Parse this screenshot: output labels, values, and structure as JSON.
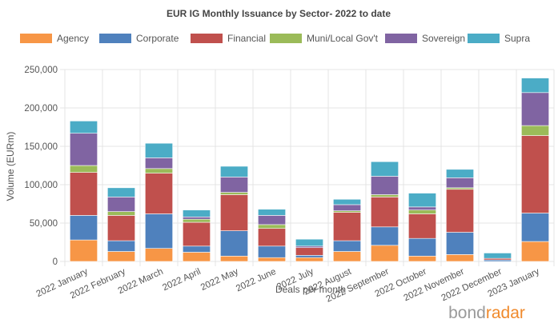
{
  "chart_data": {
    "type": "bar",
    "stacked": true,
    "title": "EUR IG Monthly Issuance by Sector- 2022 to date",
    "xlabel": "Deals per month",
    "ylabel": "Volume (EURm)",
    "ylim": [
      0,
      250000
    ],
    "yticks": [
      "0",
      "50,000",
      "100,000",
      "150,000",
      "200,000",
      "250,000"
    ],
    "grid": true,
    "legend_position": "top",
    "categories": [
      "2022 January",
      "2022 February",
      "2022 March",
      "2022 April",
      "2022 May",
      "2022 June",
      "2022 July",
      "2022 August",
      "2022 September",
      "2022 October",
      "2022 November",
      "2022 December",
      "2023 January"
    ],
    "series": [
      {
        "name": "Agency",
        "color": "#f79646",
        "values": [
          28000,
          13000,
          17000,
          12000,
          7000,
          5000,
          5000,
          13000,
          21000,
          7000,
          9000,
          0,
          26000
        ]
      },
      {
        "name": "Corporate",
        "color": "#4f81bd",
        "values": [
          32000,
          14000,
          45000,
          8000,
          33000,
          15000,
          3000,
          14000,
          24000,
          23000,
          29000,
          2000,
          37000
        ]
      },
      {
        "name": "Financial",
        "color": "#c0504d",
        "values": [
          56000,
          33000,
          53000,
          31000,
          47000,
          23000,
          10000,
          37000,
          39000,
          32000,
          56000,
          2000,
          101000
        ]
      },
      {
        "name": "Muni/Local Gov't",
        "color": "#9bbb59",
        "values": [
          9000,
          5000,
          6000,
          4000,
          3000,
          5000,
          0,
          2000,
          3000,
          5000,
          2000,
          0,
          13000
        ]
      },
      {
        "name": "Sovereign",
        "color": "#8064a2",
        "values": [
          42000,
          19000,
          14000,
          3000,
          20000,
          12000,
          2000,
          8000,
          24000,
          4000,
          13000,
          0,
          43000
        ]
      },
      {
        "name": "Supra",
        "color": "#4bacc6",
        "values": [
          16000,
          12000,
          19000,
          9000,
          14000,
          8000,
          9000,
          7000,
          19000,
          18000,
          11000,
          7000,
          19000
        ]
      }
    ]
  },
  "branding": {
    "logo_part1": "bond",
    "logo_part2": "radar"
  }
}
